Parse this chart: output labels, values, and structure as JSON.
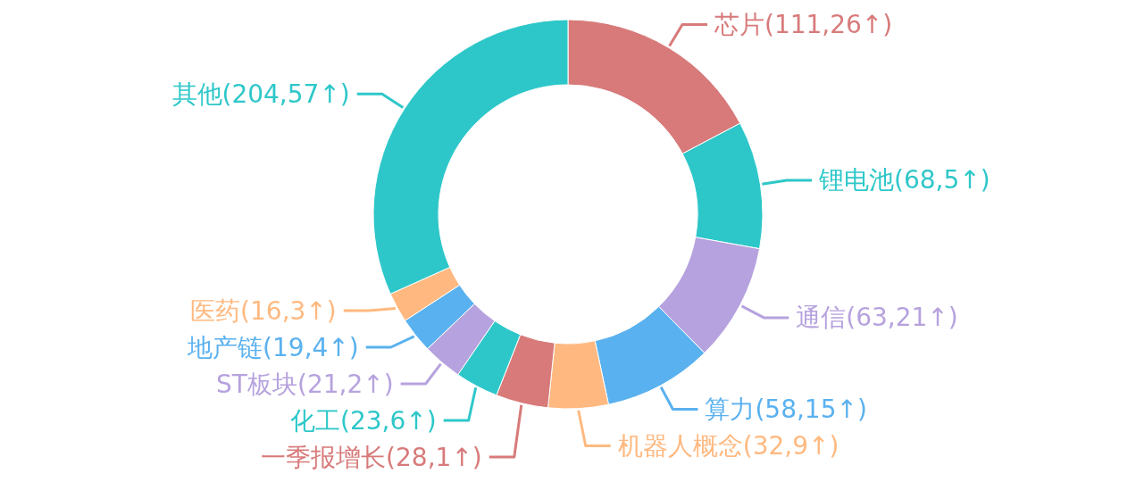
{
  "chart_data": {
    "type": "donut",
    "categories": [
      "芯片(111,26↑)",
      "锂电池(68,5↑)",
      "通信(63,21↑)",
      "算力(58,15↑)",
      "机器人概念(32,9↑)",
      "一季报增长(28,1↑)",
      "化工(23,6↑)",
      "ST板块(21,2↑)",
      "地产链(19,4↑)",
      "医药(16,3↑)",
      "其他(204,57↑)"
    ],
    "values": [
      17.26,
      10.58,
      9.8,
      9.02,
      4.98,
      4.35,
      3.58,
      3.27,
      2.95,
      2.49,
      31.72
    ],
    "colors": [
      "#d87a7a",
      "#2ec7c9",
      "#b6a2de",
      "#5ab1ef",
      "#ffb980",
      "#d87a7a",
      "#2ec7c9",
      "#b6a2de",
      "#5ab1ef",
      "#ffb980",
      "#2ec7c9"
    ]
  }
}
